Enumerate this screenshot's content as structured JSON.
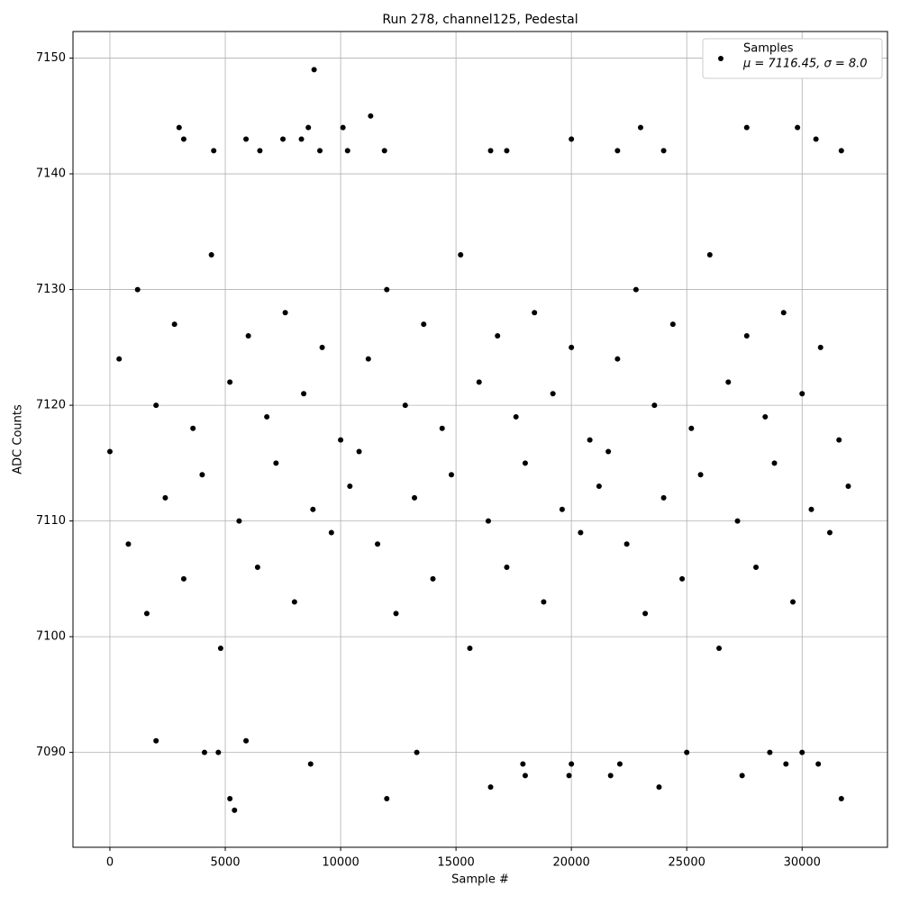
{
  "chart_data": {
    "type": "scatter",
    "title": "Run 278, channel125, Pedestal",
    "x_label": "Sample #",
    "y_label": "ADC Counts",
    "legend_note": "μ = 7116.45, σ = 8.0",
    "legend_position": "upper right",
    "grid": true,
    "xlim": [
      -1600,
      33700
    ],
    "ylim": [
      7081.8,
      7152.3
    ],
    "xticks": [
      0,
      5000,
      10000,
      15000,
      20000,
      25000,
      30000
    ],
    "yticks": [
      7090,
      7100,
      7110,
      7120,
      7130,
      7140,
      7150
    ],
    "series": [
      {
        "name": "Samples",
        "color": "#000000",
        "x": [
          0,
          400,
          800,
          1200,
          1600,
          2000,
          2400,
          2800,
          3200,
          3600,
          4000,
          4400,
          4800,
          5200,
          5600,
          6000,
          6400,
          6800,
          7200,
          7600,
          8000,
          8400,
          8800,
          9200,
          9600,
          10000,
          10400,
          10800,
          11200,
          11600,
          12000,
          12400,
          12800,
          13200,
          13600,
          14000,
          14400,
          14800,
          15200,
          15600,
          16000,
          16400,
          16800,
          17200,
          17600,
          18000,
          18400,
          18800,
          19200,
          19600,
          20000,
          20400,
          20800,
          21200,
          21600,
          22000,
          22400,
          22800,
          23200,
          23600,
          24000,
          24400,
          24800,
          25200,
          25600,
          26000,
          26400,
          26800,
          27200,
          27600,
          28000,
          28400,
          28800,
          29200,
          29600,
          30000,
          30400,
          30800,
          31200,
          31600,
          32000,
          8850,
          11300,
          3000,
          8600,
          10100,
          23000,
          27600,
          29800,
          3200,
          5900,
          7500,
          8300,
          20000,
          30600,
          4500,
          6500,
          9100,
          10300,
          11900,
          16500,
          17200,
          22000,
          24000,
          31700,
          5200,
          5400,
          12000,
          31700,
          16500,
          23800,
          2000,
          5900,
          4100,
          4700,
          13300,
          8700,
          17900,
          20000,
          22100,
          29300,
          30700,
          27400,
          21700,
          19900,
          18000,
          28600,
          30000,
          25000
        ],
        "values": [
          7116,
          7124,
          7108,
          7130,
          7102,
          7120,
          7112,
          7127,
          7105,
          7118,
          7114,
          7133,
          7099,
          7122,
          7110,
          7126,
          7106,
          7119,
          7115,
          7128,
          7103,
          7121,
          7111,
          7125,
          7109,
          7117,
          7113,
          7116,
          7124,
          7108,
          7130,
          7102,
          7120,
          7112,
          7127,
          7105,
          7118,
          7114,
          7133,
          7099,
          7122,
          7110,
          7126,
          7106,
          7119,
          7115,
          7128,
          7103,
          7121,
          7111,
          7125,
          7109,
          7117,
          7113,
          7116,
          7124,
          7108,
          7130,
          7102,
          7120,
          7112,
          7127,
          7105,
          7118,
          7114,
          7133,
          7099,
          7122,
          7110,
          7126,
          7106,
          7119,
          7115,
          7128,
          7103,
          7121,
          7111,
          7125,
          7109,
          7117,
          7113,
          7149,
          7145,
          7144,
          7144,
          7144,
          7144,
          7144,
          7144,
          7143,
          7143,
          7143,
          7143,
          7143,
          7143,
          7142,
          7142,
          7142,
          7142,
          7142,
          7142,
          7142,
          7142,
          7142,
          7142,
          7086,
          7085,
          7086,
          7086,
          7087,
          7087,
          7091,
          7091,
          7090,
          7090,
          7090,
          7089,
          7089,
          7089,
          7089,
          7089,
          7089,
          7088,
          7088,
          7088,
          7088,
          7090,
          7090,
          7090
        ]
      }
    ]
  }
}
